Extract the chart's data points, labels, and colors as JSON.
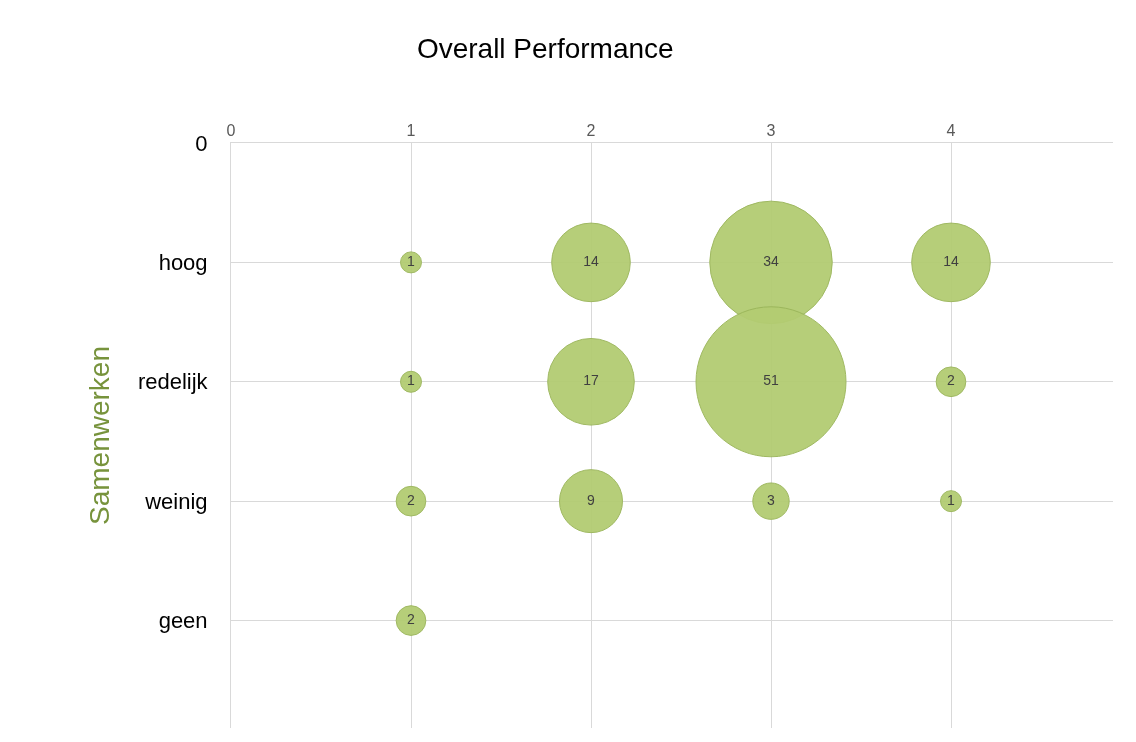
{
  "chart_data": {
    "type": "bubble",
    "title": "Overall Performance",
    "ylabel": "Samenwerken",
    "orientation": "horizontal",
    "categories": [
      "0",
      "hoog",
      "redelijk",
      "weinig",
      "geen"
    ],
    "series": [
      {
        "color": "#b3cc72",
        "values": [
          null,
          1,
          1,
          1,
          1
        ],
        "sizes": [
          null,
          1,
          1,
          2,
          2
        ],
        "value_labels": [
          null,
          "1",
          "1",
          "2",
          "2"
        ]
      },
      {
        "color": "#b3cc72",
        "values": [
          null,
          2,
          2,
          2,
          null
        ],
        "sizes": [
          null,
          14,
          17,
          9,
          null
        ],
        "value_labels": [
          null,
          "14",
          "17",
          "9",
          null
        ]
      },
      {
        "color": "#b3cc72",
        "values": [
          null,
          3,
          3,
          3,
          null
        ],
        "sizes": [
          null,
          34,
          51,
          3,
          null
        ],
        "value_labels": [
          null,
          "34",
          "51",
          "3",
          null
        ]
      },
      {
        "color": "#b3cc72",
        "values": [
          null,
          4,
          4,
          4,
          null
        ],
        "sizes": [
          null,
          14,
          2,
          1,
          null
        ],
        "value_labels": [
          null,
          "14",
          "2",
          "1",
          null
        ]
      }
    ],
    "xlim": [
      0,
      4.9
    ],
    "xticks": [
      0,
      1,
      2,
      3,
      4
    ],
    "grid": true,
    "legend": false
  }
}
